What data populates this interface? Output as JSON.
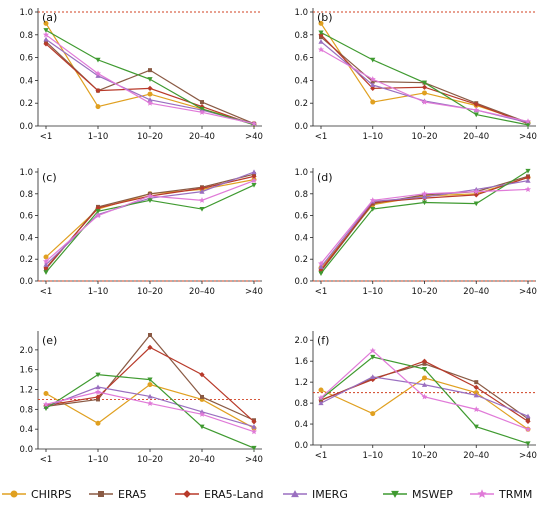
{
  "chart_data": {
    "type": "line",
    "categories": [
      "<1",
      "1–10",
      "10–20",
      "20–40",
      ">40"
    ],
    "series_names": [
      "CHIRPS",
      "ERA5",
      "ERA5-Land",
      "IMERG",
      "MSWEP",
      "TRMM"
    ],
    "colors": {
      "CHIRPS": "#e0a020",
      "ERA5": "#8a5a44",
      "ERA5-Land": "#b83a2a",
      "IMERG": "#9a6fc0",
      "MSWEP": "#3f9a30",
      "TRMM": "#e07ad8"
    },
    "markers": {
      "CHIRPS": "circle",
      "ERA5": "square",
      "ERA5-Land": "diamond",
      "IMERG": "triangle-up",
      "MSWEP": "triangle-down",
      "TRMM": "star"
    },
    "reference_line_color": "#d04020",
    "legend_position": "bottom",
    "panels": [
      {
        "label": "(a)",
        "ylim": [
          0,
          1.0
        ],
        "yticks": [
          "0.0",
          "0.2",
          "0.4",
          "0.6",
          "0.8",
          "1.0"
        ],
        "reference": 1.0,
        "series": [
          {
            "name": "CHIRPS",
            "values": [
              0.9,
              0.17,
              0.28,
              0.15,
              0.02
            ]
          },
          {
            "name": "ERA5",
            "values": [
              0.74,
              0.31,
              0.49,
              0.21,
              0.02
            ]
          },
          {
            "name": "ERA5-Land",
            "values": [
              0.72,
              0.31,
              0.33,
              0.17,
              0.01
            ]
          },
          {
            "name": "IMERG",
            "values": [
              0.76,
              0.44,
              0.23,
              0.14,
              0.02
            ]
          },
          {
            "name": "MSWEP",
            "values": [
              0.84,
              0.58,
              0.41,
              0.15,
              0.01
            ]
          },
          {
            "name": "TRMM",
            "values": [
              0.8,
              0.46,
              0.2,
              0.12,
              0.02
            ]
          }
        ]
      },
      {
        "label": "(b)",
        "ylim": [
          0,
          1.0
        ],
        "yticks": [
          "0.0",
          "0.2",
          "0.4",
          "0.6",
          "0.8",
          "1.0"
        ],
        "reference": 1.0,
        "series": [
          {
            "name": "CHIRPS",
            "values": [
              0.9,
              0.21,
              0.29,
              0.18,
              0.03
            ]
          },
          {
            "name": "ERA5",
            "values": [
              0.78,
              0.39,
              0.38,
              0.2,
              0.03
            ]
          },
          {
            "name": "ERA5-Land",
            "values": [
              0.8,
              0.33,
              0.34,
              0.19,
              0.02
            ]
          },
          {
            "name": "IMERG",
            "values": [
              0.74,
              0.36,
              0.22,
              0.14,
              0.03
            ]
          },
          {
            "name": "MSWEP",
            "values": [
              0.82,
              0.58,
              0.38,
              0.1,
              0.01
            ]
          },
          {
            "name": "TRMM",
            "values": [
              0.67,
              0.41,
              0.21,
              0.14,
              0.04
            ]
          }
        ]
      },
      {
        "label": "(c)",
        "ylim": [
          0,
          1.0
        ],
        "yticks": [
          "0.0",
          "0.2",
          "0.4",
          "0.6",
          "0.8",
          "1.0"
        ],
        "reference": 0.0,
        "series": [
          {
            "name": "CHIRPS",
            "values": [
              0.22,
              0.66,
              0.8,
              0.84,
              0.93
            ]
          },
          {
            "name": "ERA5",
            "values": [
              0.11,
              0.68,
              0.8,
              0.86,
              0.98
            ]
          },
          {
            "name": "ERA5-Land",
            "values": [
              0.12,
              0.67,
              0.78,
              0.85,
              0.96
            ]
          },
          {
            "name": "IMERG",
            "values": [
              0.15,
              0.61,
              0.76,
              0.82,
              1.0
            ]
          },
          {
            "name": "MSWEP",
            "values": [
              0.08,
              0.64,
              0.74,
              0.66,
              0.88
            ]
          },
          {
            "name": "TRMM",
            "values": [
              0.18,
              0.6,
              0.78,
              0.74,
              0.92
            ]
          }
        ]
      },
      {
        "label": "(d)",
        "ylim": [
          0,
          1.0
        ],
        "yticks": [
          "0.0",
          "0.2",
          "0.4",
          "0.6",
          "0.8",
          "1.0"
        ],
        "reference": 0.0,
        "series": [
          {
            "name": "CHIRPS",
            "values": [
              0.12,
              0.7,
              0.78,
              0.8,
              0.95
            ]
          },
          {
            "name": "ERA5",
            "values": [
              0.09,
              0.71,
              0.79,
              0.82,
              0.96
            ]
          },
          {
            "name": "ERA5-Land",
            "values": [
              0.1,
              0.72,
              0.76,
              0.79,
              0.95
            ]
          },
          {
            "name": "IMERG",
            "values": [
              0.13,
              0.73,
              0.77,
              0.84,
              0.92
            ]
          },
          {
            "name": "MSWEP",
            "values": [
              0.07,
              0.66,
              0.72,
              0.71,
              1.01
            ]
          },
          {
            "name": "TRMM",
            "values": [
              0.16,
              0.74,
              0.8,
              0.82,
              0.84
            ]
          }
        ]
      },
      {
        "label": "(e)",
        "ylim": [
          0,
          2.3
        ],
        "yticks": [
          "0.0",
          "0.4",
          "0.8",
          "1.2",
          "1.6",
          "2.0"
        ],
        "ytick_values": [
          0,
          0.4,
          0.8,
          1.2,
          1.6,
          2.0
        ],
        "reference": 1.0,
        "series": [
          {
            "name": "CHIRPS",
            "values": [
              1.12,
              0.52,
              1.3,
              1.0,
              0.42
            ]
          },
          {
            "name": "ERA5",
            "values": [
              0.86,
              1.0,
              2.3,
              1.05,
              0.58
            ]
          },
          {
            "name": "ERA5-Land",
            "values": [
              0.88,
              1.05,
              2.05,
              1.5,
              0.55
            ]
          },
          {
            "name": "IMERG",
            "values": [
              0.85,
              1.25,
              1.06,
              0.75,
              0.45
            ]
          },
          {
            "name": "MSWEP",
            "values": [
              0.82,
              1.5,
              1.4,
              0.45,
              0.02
            ]
          },
          {
            "name": "TRMM",
            "values": [
              0.9,
              1.15,
              0.92,
              0.7,
              0.35
            ]
          }
        ]
      },
      {
        "label": "(f)",
        "ylim": [
          0,
          2.1
        ],
        "yticks": [
          "0.0",
          "0.4",
          "0.8",
          "1.2",
          "1.6",
          "2.0"
        ],
        "ytick_values": [
          0,
          0.4,
          0.8,
          1.2,
          1.6,
          2.0
        ],
        "reference": 1.0,
        "series": [
          {
            "name": "CHIRPS",
            "values": [
              1.05,
              0.6,
              1.28,
              1.0,
              0.3
            ]
          },
          {
            "name": "ERA5",
            "values": [
              0.85,
              1.27,
              1.55,
              1.2,
              0.5
            ]
          },
          {
            "name": "ERA5-Land",
            "values": [
              0.86,
              1.25,
              1.6,
              1.1,
              0.45
            ]
          },
          {
            "name": "IMERG",
            "values": [
              0.8,
              1.3,
              1.15,
              0.95,
              0.55
            ]
          },
          {
            "name": "MSWEP",
            "values": [
              0.88,
              1.68,
              1.45,
              0.35,
              0.03
            ]
          },
          {
            "name": "TRMM",
            "values": [
              0.9,
              1.8,
              0.92,
              0.68,
              0.3
            ]
          }
        ]
      }
    ]
  }
}
